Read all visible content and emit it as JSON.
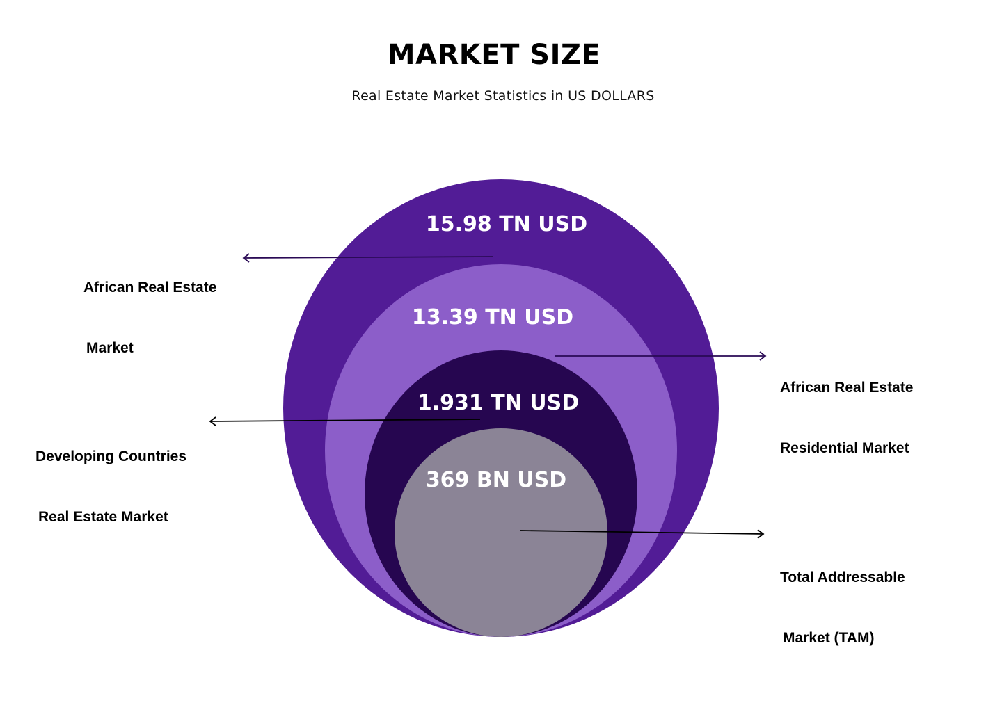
{
  "header": {
    "title": "MARKET SIZE",
    "subtitle": "Real Estate Market Statistics in US DOLLARS"
  },
  "circles": [
    {
      "value": "15.98 TN USD",
      "label_line1": "African Real Estate",
      "label_line2": "Market",
      "color": "#521c96"
    },
    {
      "value": "13.39 TN USD",
      "label_line1": "African Real Estate",
      "label_line2": "Residential Market",
      "color": "#8c5ec9"
    },
    {
      "value": "1.931 TN USD",
      "label_line1": "Developing Countries",
      "label_line2": "Real Estate Market",
      "color": "#260650"
    },
    {
      "value": "369 BN USD",
      "label_line1": "Total Addressable",
      "label_line2": "Market (TAM)",
      "color": "#8b8496"
    }
  ]
}
